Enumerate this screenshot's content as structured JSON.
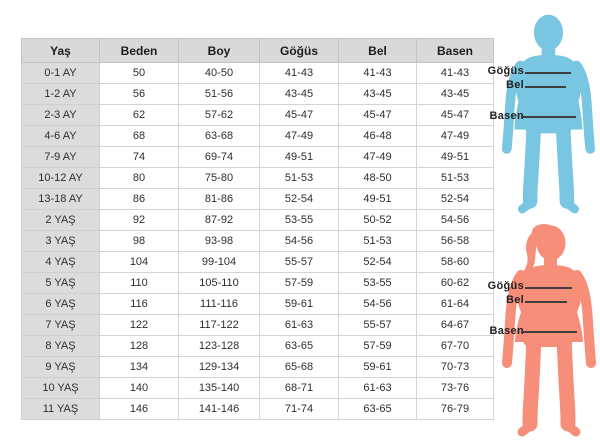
{
  "chart_data": {
    "type": "table",
    "title": "",
    "columns": [
      "Yaş",
      "Beden",
      "Boy",
      "Göğüs",
      "Bel",
      "Basen"
    ],
    "rows": [
      [
        "0-1 AY",
        "50",
        "40-50",
        "41-43",
        "41-43",
        "41-43"
      ],
      [
        "1-2 AY",
        "56",
        "51-56",
        "43-45",
        "43-45",
        "43-45"
      ],
      [
        "2-3 AY",
        "62",
        "57-62",
        "45-47",
        "45-47",
        "45-47"
      ],
      [
        "4-6 AY",
        "68",
        "63-68",
        "47-49",
        "46-48",
        "47-49"
      ],
      [
        "7-9 AY",
        "74",
        "69-74",
        "49-51",
        "47-49",
        "49-51"
      ],
      [
        "10-12 AY",
        "80",
        "75-80",
        "51-53",
        "48-50",
        "51-53"
      ],
      [
        "13-18 AY",
        "86",
        "81-86",
        "52-54",
        "49-51",
        "52-54"
      ],
      [
        "2 YAŞ",
        "92",
        "87-92",
        "53-55",
        "50-52",
        "54-56"
      ],
      [
        "3 YAŞ",
        "98",
        "93-98",
        "54-56",
        "51-53",
        "56-58"
      ],
      [
        "4 YAŞ",
        "104",
        "99-104",
        "55-57",
        "52-54",
        "58-60"
      ],
      [
        "5 YAŞ",
        "110",
        "105-110",
        "57-59",
        "53-55",
        "60-62"
      ],
      [
        "6 YAŞ",
        "116",
        "111-116",
        "59-61",
        "54-56",
        "61-64"
      ],
      [
        "7 YAŞ",
        "122",
        "117-122",
        "61-63",
        "55-57",
        "64-67"
      ],
      [
        "8 YAŞ",
        "128",
        "123-128",
        "63-65",
        "57-59",
        "67-70"
      ],
      [
        "9 YAŞ",
        "134",
        "129-134",
        "65-68",
        "59-61",
        "70-73"
      ],
      [
        "10 YAŞ",
        "140",
        "135-140",
        "68-71",
        "61-63",
        "73-76"
      ],
      [
        "11 YAŞ",
        "146",
        "141-146",
        "71-74",
        "63-65",
        "76-79"
      ]
    ]
  },
  "measure_labels": {
    "gogus": "Göğüs",
    "bel": "Bel",
    "basen": "Basen"
  },
  "colors": {
    "boy_silhouette": "#79c6e2",
    "girl_silhouette": "#f68e79",
    "table_header_bg": "#d9d9d9",
    "row_label_bg": "#dcdcdc",
    "measure_line": "#3f3f3f"
  }
}
